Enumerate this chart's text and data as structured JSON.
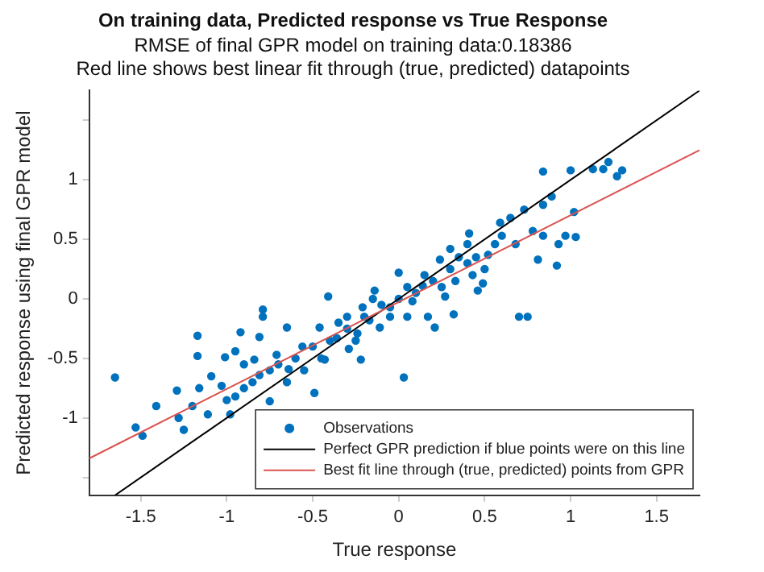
{
  "chart_data": {
    "type": "scatter",
    "title": "On training data, Predicted response vs True Response",
    "subtitle": "RMSE of final GPR model on training data:0.18386",
    "annotations": [
      "Red line shows best linear fit through (true, predicted) datapoints"
    ],
    "xlabel": "True response",
    "ylabel": "Predicted response using final GPR model",
    "xlim": [
      -1.8,
      1.75
    ],
    "ylim": [
      -1.65,
      1.75
    ],
    "xticks": [
      -1.5,
      -1,
      -0.5,
      0,
      0.5,
      1,
      1.5
    ],
    "yticks": [
      {
        "value": -1.5,
        "label": null
      },
      -1,
      -0.5,
      0,
      0.5,
      1,
      {
        "value": 1.5,
        "label": null
      }
    ],
    "grid": false,
    "legend": "bottom right",
    "series": [
      {
        "name": "Observations",
        "marker": "circle",
        "color": "#0072bd",
        "x": [
          -1.65,
          -1.53,
          -1.49,
          -1.41,
          -1.29,
          -1.28,
          -1.25,
          -1.17,
          -1.17,
          -1.16,
          -1.11,
          -1.09,
          -1.03,
          -1.01,
          -0.98,
          -0.95,
          -0.92,
          -0.95,
          -0.9,
          -0.84,
          -0.81,
          -0.79,
          -0.79,
          -0.81,
          -0.75,
          -0.71,
          -0.65,
          -0.64,
          -0.56,
          -0.49,
          -0.46,
          -0.43,
          -0.41,
          -0.36,
          -0.3,
          -0.29,
          -0.24,
          -0.21,
          -0.17,
          -0.14,
          -0.22,
          -0.11,
          -0.05,
          0,
          0.03,
          0.05,
          0.08,
          0.14,
          0.17,
          0.21,
          0.24,
          0.27,
          0.32,
          0.33,
          0.3,
          0.4,
          0.41,
          0.43,
          0.46,
          0.49,
          0.52,
          0.56,
          0.59,
          0.6,
          0.65,
          0.7,
          0.75,
          0.68,
          0.73,
          0.78,
          0.81,
          0.84,
          0.84,
          0.84,
          0.89,
          0.92,
          0.93,
          0.97,
          1,
          1.02,
          1.03,
          1.13,
          1.19,
          1.22,
          1.27,
          1.3,
          -0.7,
          -0.6,
          -0.5,
          -0.4,
          -0.3,
          -0.2,
          -0.1,
          0,
          0.1,
          0.2,
          0.3,
          0.4,
          -0.55,
          -0.45,
          -0.35,
          -0.25,
          -0.15,
          -0.05,
          0.05,
          0.15,
          0.25,
          0.35,
          0.45,
          0.5,
          -0.65,
          -0.75,
          -0.85,
          -1,
          -1.2,
          -0.9
        ],
        "values": [
          -0.66,
          -1.08,
          -1.15,
          -0.9,
          -0.77,
          -1,
          -1.1,
          -0.31,
          -0.48,
          -0.75,
          -0.97,
          -0.65,
          -0.73,
          -0.49,
          -0.97,
          -0.44,
          -0.28,
          -0.82,
          -0.75,
          -0.51,
          -0.32,
          -0.09,
          -0.15,
          -0.64,
          -0.86,
          -0.47,
          -0.24,
          -0.59,
          -0.4,
          -0.79,
          -0.24,
          -0.51,
          0.02,
          -0.33,
          -0.15,
          -0.42,
          -0.29,
          -0.07,
          -0.18,
          0.07,
          -0.51,
          -0.24,
          -0.07,
          0.22,
          -0.66,
          -0.15,
          -0.02,
          0.11,
          -0.15,
          -0.24,
          0.33,
          0.02,
          -0.13,
          0.15,
          0.42,
          0.46,
          0.55,
          0.2,
          0.07,
          0.13,
          0.37,
          0.46,
          0.64,
          0.53,
          0.68,
          -0.15,
          -0.15,
          0.46,
          0.75,
          0.57,
          0.33,
          0.53,
          0.79,
          1.07,
          0.86,
          0.28,
          0.46,
          0.53,
          1.08,
          0.73,
          0.52,
          1.09,
          1.09,
          1.15,
          1.03,
          1.08,
          -0.55,
          -0.5,
          -0.4,
          -0.35,
          -0.25,
          -0.15,
          -0.05,
          0,
          0.05,
          0.15,
          0.25,
          0.3,
          -0.6,
          -0.5,
          -0.2,
          -0.35,
          0,
          -0.15,
          0.1,
          0.2,
          0.1,
          0.35,
          0.35,
          0.25,
          -0.7,
          -0.6,
          -0.7,
          -0.85,
          -0.9,
          -0.55
        ]
      },
      {
        "name": "Perfect GPR prediction if blue points were on this line",
        "type": "line",
        "marker": "none",
        "color": "#000000",
        "x": [
          -1.65,
          1.75
        ],
        "values": [
          -1.65,
          1.75
        ]
      },
      {
        "name": "Best fit line through (true, predicted) points from GPR",
        "type": "line",
        "marker": "none",
        "color": "#d9534f",
        "x": [
          -1.8,
          1.75
        ],
        "values": [
          -1.34,
          1.25
        ]
      }
    ]
  }
}
